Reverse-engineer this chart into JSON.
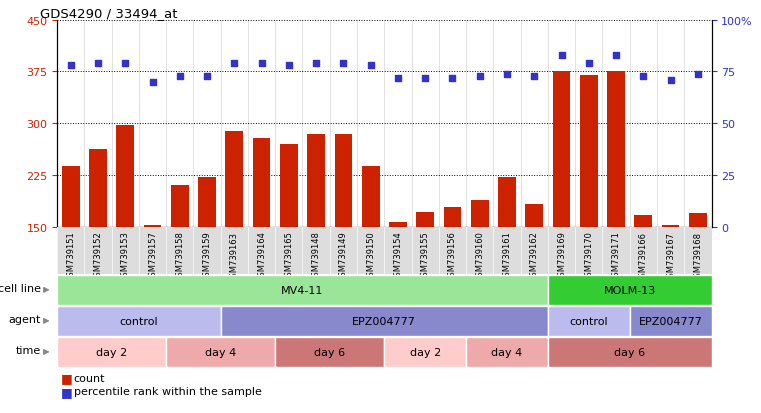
{
  "title": "GDS4290 / 33494_at",
  "samples": [
    "GSM739151",
    "GSM739152",
    "GSM739153",
    "GSM739157",
    "GSM739158",
    "GSM739159",
    "GSM739163",
    "GSM739164",
    "GSM739165",
    "GSM739148",
    "GSM739149",
    "GSM739150",
    "GSM739154",
    "GSM739155",
    "GSM739156",
    "GSM739160",
    "GSM739161",
    "GSM739162",
    "GSM739169",
    "GSM739170",
    "GSM739171",
    "GSM739166",
    "GSM739167",
    "GSM739168"
  ],
  "counts": [
    238,
    263,
    298,
    152,
    210,
    222,
    288,
    278,
    270,
    285,
    285,
    238,
    157,
    172,
    178,
    188,
    222,
    183,
    375,
    370,
    375,
    167,
    152,
    170
  ],
  "percentiles": [
    78,
    79,
    79,
    70,
    73,
    73,
    79,
    79,
    78,
    79,
    79,
    78,
    72,
    72,
    72,
    73,
    74,
    73,
    83,
    79,
    83,
    73,
    71,
    74
  ],
  "ylim_left": [
    150,
    450
  ],
  "ylim_right": [
    0,
    100
  ],
  "yticks_left": [
    150,
    225,
    300,
    375,
    450
  ],
  "yticks_right": [
    0,
    25,
    50,
    75,
    100
  ],
  "bar_color": "#cc2200",
  "dot_color": "#3333cc",
  "bg_color": "#ffffff",
  "plot_bg": "#ffffff",
  "label_arrow_color": "#888888",
  "xlabel_bg": "#dddddd",
  "annotation_rows": [
    {
      "label": "cell line",
      "segments": [
        {
          "text": "MV4-11",
          "start": 0,
          "end": 18,
          "color": "#99e699"
        },
        {
          "text": "MOLM-13",
          "start": 18,
          "end": 24,
          "color": "#33cc33"
        }
      ]
    },
    {
      "label": "agent",
      "segments": [
        {
          "text": "control",
          "start": 0,
          "end": 6,
          "color": "#bbbbee"
        },
        {
          "text": "EPZ004777",
          "start": 6,
          "end": 18,
          "color": "#8888cc"
        },
        {
          "text": "control",
          "start": 18,
          "end": 21,
          "color": "#bbbbee"
        },
        {
          "text": "EPZ004777",
          "start": 21,
          "end": 24,
          "color": "#8888cc"
        }
      ]
    },
    {
      "label": "time",
      "segments": [
        {
          "text": "day 2",
          "start": 0,
          "end": 4,
          "color": "#ffcccc"
        },
        {
          "text": "day 4",
          "start": 4,
          "end": 8,
          "color": "#eeaaaa"
        },
        {
          "text": "day 6",
          "start": 8,
          "end": 12,
          "color": "#cc7777"
        },
        {
          "text": "day 2",
          "start": 12,
          "end": 15,
          "color": "#ffcccc"
        },
        {
          "text": "day 4",
          "start": 15,
          "end": 18,
          "color": "#eeaaaa"
        },
        {
          "text": "day 6",
          "start": 18,
          "end": 24,
          "color": "#cc7777"
        }
      ]
    }
  ],
  "legend": [
    {
      "symbol": "s",
      "color": "#cc2200",
      "label": "count"
    },
    {
      "symbol": "s",
      "color": "#3333cc",
      "label": "percentile rank within the sample"
    }
  ]
}
